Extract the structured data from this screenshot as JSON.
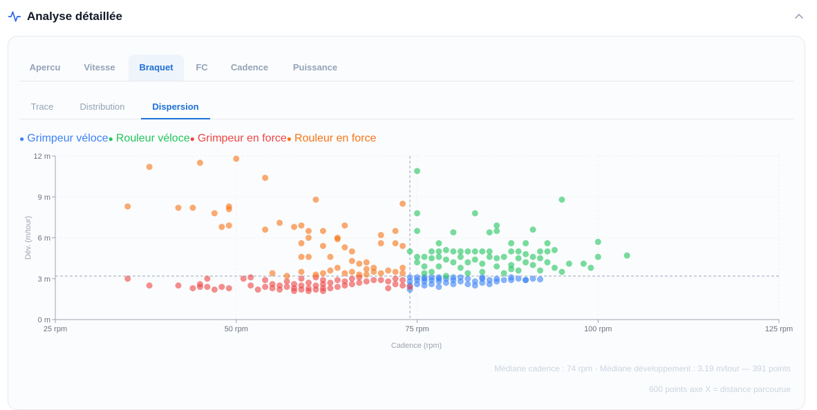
{
  "section": {
    "title": "Analyse détaillée",
    "icon": "activity-icon",
    "collapse_icon": "chevron-up-icon"
  },
  "tabs": [
    {
      "label": "Apercu",
      "active": false
    },
    {
      "label": "Vitesse",
      "active": false
    },
    {
      "label": "Braquet",
      "active": true
    },
    {
      "label": "FC",
      "active": false
    },
    {
      "label": "Cadence",
      "active": false
    },
    {
      "label": "Puissance",
      "active": false
    }
  ],
  "subtabs": [
    {
      "label": "Trace",
      "active": false
    },
    {
      "label": "Distribution",
      "active": false
    },
    {
      "label": "Dispersion",
      "active": true
    }
  ],
  "footnotes": {
    "summary": "Médiane cadence : 74 rpm · Médiane développement : 3.19 m/tour — 391 points",
    "axis_note": "600 points axe X = distance parcourue"
  },
  "chart_data": {
    "type": "scatter",
    "xlabel": "Cadence (rpm)",
    "ylabel": "Dév. (m/tour)",
    "xlim": [
      25,
      125
    ],
    "ylim": [
      0,
      12
    ],
    "x_ticks": [
      25,
      50,
      75,
      100,
      125
    ],
    "x_tick_labels": [
      "25 rpm",
      "50 rpm",
      "75 rpm",
      "100 rpm",
      "125 rpm"
    ],
    "y_ticks": [
      0,
      3,
      6,
      9,
      12
    ],
    "y_tick_labels": [
      "0 m",
      "3 m",
      "6 m",
      "9 m",
      "12 m"
    ],
    "grid": true,
    "legend_position": "top-left",
    "median_lines": {
      "x": 74,
      "y": 3.19
    },
    "series": [
      {
        "name": "Grimpeur véloce",
        "color": "#3b82f6",
        "points": [
          [
            74,
            2.2
          ],
          [
            74,
            2.5
          ],
          [
            74,
            2.8
          ],
          [
            74,
            3.1
          ],
          [
            75,
            2.6
          ],
          [
            75,
            2.9
          ],
          [
            75,
            3.1
          ],
          [
            76,
            2.5
          ],
          [
            76,
            2.8
          ],
          [
            76,
            3.0
          ],
          [
            77,
            2.6
          ],
          [
            77,
            2.9
          ],
          [
            77,
            3.1
          ],
          [
            78,
            2.4
          ],
          [
            78,
            2.8
          ],
          [
            78,
            3.0
          ],
          [
            79,
            2.7
          ],
          [
            79,
            3.0
          ],
          [
            80,
            2.6
          ],
          [
            80,
            2.9
          ],
          [
            81,
            2.8
          ],
          [
            81,
            3.1
          ],
          [
            82,
            2.6
          ],
          [
            82,
            3.0
          ],
          [
            83,
            2.5
          ],
          [
            83,
            2.8
          ],
          [
            84,
            2.7
          ],
          [
            84,
            3.0
          ],
          [
            85,
            2.6
          ],
          [
            85,
            2.9
          ],
          [
            86,
            2.8
          ],
          [
            86,
            3.0
          ],
          [
            87,
            2.9
          ],
          [
            88,
            2.9
          ],
          [
            89,
            3.0
          ],
          [
            90,
            2.9
          ],
          [
            90,
            2.9
          ],
          [
            91,
            3.0
          ],
          [
            92,
            2.95
          ],
          [
            76,
            3.1
          ],
          [
            78,
            3.1
          ],
          [
            80,
            3.1
          ],
          [
            84,
            3.1
          ],
          [
            88,
            3.1
          ]
        ]
      },
      {
        "name": "Rouleur véloce",
        "color": "#22c55e",
        "points": [
          [
            75,
            10.9
          ],
          [
            75,
            7.8
          ],
          [
            75,
            6.5
          ],
          [
            74,
            5.0
          ],
          [
            75,
            4.6
          ],
          [
            75,
            4.2
          ],
          [
            76,
            4.6
          ],
          [
            76,
            3.9
          ],
          [
            76,
            3.4
          ],
          [
            77,
            5.0
          ],
          [
            77,
            4.5
          ],
          [
            77,
            3.5
          ],
          [
            78,
            5.6
          ],
          [
            78,
            5.0
          ],
          [
            78,
            4.6
          ],
          [
            78,
            3.9
          ],
          [
            79,
            5.1
          ],
          [
            79,
            4.4
          ],
          [
            79,
            3.2
          ],
          [
            80,
            6.4
          ],
          [
            80,
            5.0
          ],
          [
            80,
            4.2
          ],
          [
            81,
            5.0
          ],
          [
            81,
            4.6
          ],
          [
            81,
            3.8
          ],
          [
            82,
            5.0
          ],
          [
            82,
            4.2
          ],
          [
            82,
            3.4
          ],
          [
            83,
            7.8
          ],
          [
            83,
            5.0
          ],
          [
            83,
            4.4
          ],
          [
            84,
            5.0
          ],
          [
            84,
            4.1
          ],
          [
            84,
            3.5
          ],
          [
            85,
            6.4
          ],
          [
            85,
            5.0
          ],
          [
            85,
            4.6
          ],
          [
            86,
            6.9
          ],
          [
            86,
            6.5
          ],
          [
            86,
            4.5
          ],
          [
            86,
            3.9
          ],
          [
            87,
            4.6
          ],
          [
            87,
            3.4
          ],
          [
            88,
            5.6
          ],
          [
            88,
            5.0
          ],
          [
            88,
            4.0
          ],
          [
            89,
            5.0
          ],
          [
            89,
            4.5
          ],
          [
            89,
            3.6
          ],
          [
            90,
            5.6
          ],
          [
            90,
            4.8
          ],
          [
            90,
            4.2
          ],
          [
            91,
            6.6
          ],
          [
            91,
            4.6
          ],
          [
            91,
            4.0
          ],
          [
            92,
            5.0
          ],
          [
            92,
            4.5
          ],
          [
            93,
            5.6
          ],
          [
            93,
            5.0
          ],
          [
            93,
            4.2
          ],
          [
            94,
            5.1
          ],
          [
            94,
            3.8
          ],
          [
            95,
            8.8
          ],
          [
            95,
            3.5
          ],
          [
            96,
            4.1
          ],
          [
            98,
            4.1
          ],
          [
            99,
            3.8
          ],
          [
            100,
            5.7
          ],
          [
            100,
            4.6
          ],
          [
            104,
            4.7
          ],
          [
            92,
            3.6
          ],
          [
            88,
            3.7
          ]
        ]
      },
      {
        "name": "Grimpeur en force",
        "color": "#ef4444",
        "points": [
          [
            35,
            3.0
          ],
          [
            38,
            2.5
          ],
          [
            42,
            2.5
          ],
          [
            44,
            2.3
          ],
          [
            45,
            2.4
          ],
          [
            45,
            2.6
          ],
          [
            46,
            2.4
          ],
          [
            46,
            3.0
          ],
          [
            47,
            2.2
          ],
          [
            48,
            2.4
          ],
          [
            49,
            2.3
          ],
          [
            51,
            3.0
          ],
          [
            52,
            2.5
          ],
          [
            52,
            3.1
          ],
          [
            53,
            2.2
          ],
          [
            54,
            2.4
          ],
          [
            54,
            2.9
          ],
          [
            55,
            2.3
          ],
          [
            55,
            2.6
          ],
          [
            56,
            2.2
          ],
          [
            56,
            2.5
          ],
          [
            57,
            2.4
          ],
          [
            57,
            2.8
          ],
          [
            58,
            2.3
          ],
          [
            58,
            2.6
          ],
          [
            59,
            2.2
          ],
          [
            59,
            2.5
          ],
          [
            59,
            3.0
          ],
          [
            60,
            2.3
          ],
          [
            60,
            2.7
          ],
          [
            61,
            2.2
          ],
          [
            61,
            2.5
          ],
          [
            61,
            3.1
          ],
          [
            62,
            2.3
          ],
          [
            62,
            2.6
          ],
          [
            62,
            2.9
          ],
          [
            63,
            2.3
          ],
          [
            63,
            2.7
          ],
          [
            64,
            2.4
          ],
          [
            64,
            2.9
          ],
          [
            65,
            2.5
          ],
          [
            65,
            2.8
          ],
          [
            66,
            2.6
          ],
          [
            66,
            3.0
          ],
          [
            67,
            2.7
          ],
          [
            67,
            3.1
          ],
          [
            68,
            2.8
          ],
          [
            69,
            2.9
          ],
          [
            70,
            2.9
          ],
          [
            71,
            2.3
          ],
          [
            71,
            2.8
          ],
          [
            72,
            3.0
          ],
          [
            72,
            2.6
          ],
          [
            73,
            2.5
          ],
          [
            73,
            2.9
          ],
          [
            74,
            2.4
          ],
          [
            60,
            2.1
          ],
          [
            58,
            2.1
          ],
          [
            62,
            2.1
          ]
        ]
      },
      {
        "name": "Rouleur en force",
        "color": "#f97316",
        "points": [
          [
            38,
            11.2
          ],
          [
            45,
            11.5
          ],
          [
            50,
            11.8
          ],
          [
            54,
            10.4
          ],
          [
            35,
            8.3
          ],
          [
            42,
            8.2
          ],
          [
            44,
            8.2
          ],
          [
            47,
            7.8
          ],
          [
            48,
            6.8
          ],
          [
            49,
            6.9
          ],
          [
            49,
            8.1
          ],
          [
            49,
            8.3
          ],
          [
            54,
            6.6
          ],
          [
            56,
            7.1
          ],
          [
            58,
            6.8
          ],
          [
            59,
            6.9
          ],
          [
            59,
            5.6
          ],
          [
            59,
            4.6
          ],
          [
            60,
            6.5
          ],
          [
            60,
            6.0
          ],
          [
            60,
            4.6
          ],
          [
            61,
            8.8
          ],
          [
            62,
            6.5
          ],
          [
            62,
            5.4
          ],
          [
            63,
            4.6
          ],
          [
            64,
            6.0
          ],
          [
            64,
            5.9
          ],
          [
            65,
            6.9
          ],
          [
            65,
            5.3
          ],
          [
            66,
            5.0
          ],
          [
            66,
            4.3
          ],
          [
            67,
            4.1
          ],
          [
            68,
            4.2
          ],
          [
            68,
            3.7
          ],
          [
            69,
            3.8
          ],
          [
            70,
            6.2
          ],
          [
            70,
            5.6
          ],
          [
            71,
            3.6
          ],
          [
            72,
            6.5
          ],
          [
            72,
            5.6
          ],
          [
            73,
            8.5
          ],
          [
            73,
            5.4
          ],
          [
            73,
            3.8
          ],
          [
            73,
            3.4
          ],
          [
            64,
            3.8
          ],
          [
            62,
            3.4
          ],
          [
            66,
            3.5
          ],
          [
            68,
            3.3
          ],
          [
            70,
            3.4
          ],
          [
            72,
            3.5
          ],
          [
            57,
            3.2
          ],
          [
            55,
            3.4
          ],
          [
            59,
            3.5
          ],
          [
            61,
            3.3
          ],
          [
            63,
            3.6
          ],
          [
            65,
            3.4
          ],
          [
            67,
            3.3
          ],
          [
            69,
            3.5
          ]
        ]
      }
    ]
  }
}
